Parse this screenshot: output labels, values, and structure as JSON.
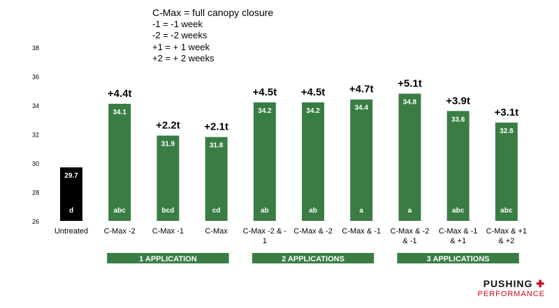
{
  "legend": {
    "title": "C-Max = full canopy closure",
    "lines": [
      "-1 = -1 week",
      "-2 = -2 weeks",
      "+1 = + 1 week",
      "+2 = + 2 weeks"
    ]
  },
  "chart_data": {
    "type": "bar",
    "ylim": [
      26,
      38
    ],
    "yticks": [
      26,
      28,
      30,
      32,
      34,
      36,
      38
    ],
    "grid": false,
    "categories": [
      [
        "Untreated"
      ],
      [
        "C-Max -2"
      ],
      [
        "C-Max -1"
      ],
      [
        "C-Max"
      ],
      [
        "C-Max -2 & -",
        "1"
      ],
      [
        "C-Max & -2"
      ],
      [
        "C-Max & -1"
      ],
      [
        "C-Max & -2",
        "& -1"
      ],
      [
        "C-Max & -1",
        "& +1"
      ],
      [
        "C-Max & +1",
        "& +2"
      ]
    ],
    "values": [
      29.7,
      34.1,
      31.9,
      31.8,
      34.2,
      34.2,
      34.4,
      34.8,
      33.6,
      32.8
    ],
    "value_labels": [
      "29.7",
      "34.1",
      "31.9",
      "31.8",
      "34.2",
      "34.2",
      "34.4",
      "34.8",
      "33.6",
      "32.8"
    ],
    "letters": [
      "d",
      "abc",
      "bcd",
      "cd",
      "ab",
      "ab",
      "a",
      "a",
      "abc",
      "abc"
    ],
    "gains": [
      "",
      "+4.4t",
      "+2.2t",
      "+2.1t",
      "+4.5t",
      "+4.5t",
      "+4.7t",
      "+5.1t",
      "+3.9t",
      "+3.1t"
    ],
    "colors": [
      "#000000",
      "#3a7d44",
      "#3a7d44",
      "#3a7d44",
      "#3a7d44",
      "#3a7d44",
      "#3a7d44",
      "#3a7d44",
      "#3a7d44",
      "#3a7d44"
    ],
    "groups": [
      {
        "label": "1 APPLICATION",
        "first": 1,
        "last": 3
      },
      {
        "label": "2 APPLICATIONS",
        "first": 4,
        "last": 6
      },
      {
        "label": "3 APPLICATIONS",
        "first": 7,
        "last": 9
      }
    ],
    "group_color": "#3a7d44"
  },
  "brand": {
    "top": "PUSHING",
    "bottom": "PERFORMANCE",
    "mark": "✚"
  }
}
